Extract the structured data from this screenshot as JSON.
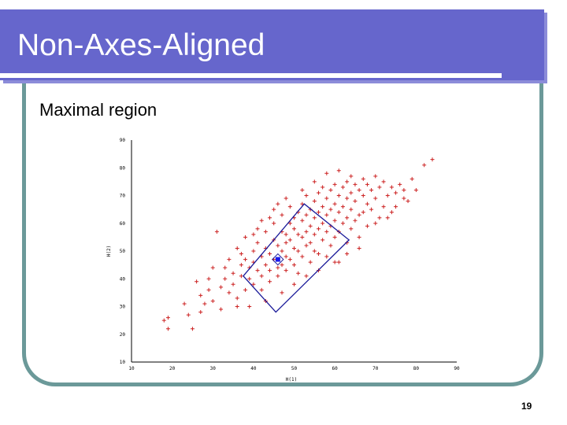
{
  "slide": {
    "title": "Non-Axes-Aligned",
    "subtitle": "Maximal region",
    "page_number": "19"
  },
  "colors": {
    "title_bar": "#6666cc",
    "frame_border": "#6b9999",
    "points": "#cc2222",
    "region": "#1a1a99",
    "focus_point": "#1a1aee"
  },
  "chart_data": {
    "type": "scatter",
    "title": "",
    "xlabel": "H(1)",
    "ylabel": "H(2)",
    "xlim": [
      10,
      90
    ],
    "ylim": [
      10,
      90
    ],
    "xticks": [
      10,
      20,
      30,
      40,
      50,
      60,
      70,
      80,
      90
    ],
    "yticks": [
      10,
      20,
      30,
      40,
      50,
      60,
      70,
      80,
      90
    ],
    "grid": false,
    "marker": "+",
    "series": [
      {
        "values_xy": [
          [
            19,
            26
          ],
          [
            19,
            22
          ],
          [
            23,
            31
          ],
          [
            24,
            27
          ],
          [
            26,
            39
          ],
          [
            27,
            34
          ],
          [
            28,
            31
          ],
          [
            29,
            36
          ],
          [
            30,
            32
          ],
          [
            31,
            57
          ],
          [
            32,
            37
          ],
          [
            33,
            40
          ],
          [
            34,
            35
          ],
          [
            35,
            42
          ],
          [
            35,
            38
          ],
          [
            36,
            33
          ],
          [
            37,
            45
          ],
          [
            37,
            41
          ],
          [
            38,
            47
          ],
          [
            38,
            36
          ],
          [
            39,
            44
          ],
          [
            39,
            40
          ],
          [
            40,
            50
          ],
          [
            40,
            46
          ],
          [
            40,
            38
          ],
          [
            41,
            53
          ],
          [
            41,
            43
          ],
          [
            42,
            48
          ],
          [
            42,
            41
          ],
          [
            42,
            36
          ],
          [
            43,
            57
          ],
          [
            43,
            51
          ],
          [
            43,
            45
          ],
          [
            44,
            49
          ],
          [
            44,
            43
          ],
          [
            44,
            39
          ],
          [
            45,
            60
          ],
          [
            45,
            54
          ],
          [
            45,
            47
          ],
          [
            46,
            52
          ],
          [
            46,
            44
          ],
          [
            46,
            41
          ],
          [
            47,
            63
          ],
          [
            47,
            57
          ],
          [
            47,
            50
          ],
          [
            47,
            45
          ],
          [
            48,
            56
          ],
          [
            48,
            53
          ],
          [
            48,
            48
          ],
          [
            48,
            43
          ],
          [
            49,
            66
          ],
          [
            49,
            60
          ],
          [
            49,
            54
          ],
          [
            49,
            47
          ],
          [
            50,
            62
          ],
          [
            50,
            58
          ],
          [
            50,
            51
          ],
          [
            50,
            45
          ],
          [
            51,
            64
          ],
          [
            51,
            56
          ],
          [
            51,
            50
          ],
          [
            51,
            42
          ],
          [
            52,
            67
          ],
          [
            52,
            61
          ],
          [
            52,
            55
          ],
          [
            52,
            48
          ],
          [
            53,
            70
          ],
          [
            53,
            63
          ],
          [
            53,
            57
          ],
          [
            53,
            52
          ],
          [
            54,
            65
          ],
          [
            54,
            59
          ],
          [
            54,
            53
          ],
          [
            54,
            46
          ],
          [
            55,
            68
          ],
          [
            55,
            62
          ],
          [
            55,
            56
          ],
          [
            55,
            50
          ],
          [
            56,
            71
          ],
          [
            56,
            64
          ],
          [
            56,
            58
          ],
          [
            56,
            49
          ],
          [
            57,
            73
          ],
          [
            57,
            66
          ],
          [
            57,
            60
          ],
          [
            57,
            54
          ],
          [
            58,
            69
          ],
          [
            58,
            63
          ],
          [
            58,
            57
          ],
          [
            58,
            48
          ],
          [
            59,
            72
          ],
          [
            59,
            65
          ],
          [
            59,
            59
          ],
          [
            59,
            52
          ],
          [
            60,
            74
          ],
          [
            60,
            67
          ],
          [
            60,
            61
          ],
          [
            60,
            55
          ],
          [
            61,
            70
          ],
          [
            61,
            64
          ],
          [
            61,
            57
          ],
          [
            61,
            46
          ],
          [
            62,
            73
          ],
          [
            62,
            66
          ],
          [
            62,
            60
          ],
          [
            63,
            75
          ],
          [
            63,
            69
          ],
          [
            63,
            62
          ],
          [
            63,
            53
          ],
          [
            64,
            71
          ],
          [
            64,
            65
          ],
          [
            64,
            58
          ],
          [
            65,
            74
          ],
          [
            65,
            68
          ],
          [
            65,
            61
          ],
          [
            66,
            72
          ],
          [
            66,
            63
          ],
          [
            66,
            55
          ],
          [
            67,
            76
          ],
          [
            67,
            70
          ],
          [
            67,
            64
          ],
          [
            68,
            74
          ],
          [
            68,
            67
          ],
          [
            68,
            59
          ],
          [
            69,
            72
          ],
          [
            69,
            65
          ],
          [
            70,
            77
          ],
          [
            70,
            69
          ],
          [
            71,
            73
          ],
          [
            71,
            62
          ],
          [
            72,
            75
          ],
          [
            72,
            66
          ],
          [
            73,
            70
          ],
          [
            74,
            73
          ],
          [
            74,
            64
          ],
          [
            75,
            71
          ],
          [
            76,
            74
          ],
          [
            77,
            72
          ],
          [
            78,
            68
          ],
          [
            79,
            76
          ],
          [
            84,
            83
          ],
          [
            82,
            81
          ],
          [
            18,
            25
          ],
          [
            25,
            22
          ],
          [
            30,
            44
          ],
          [
            34,
            47
          ],
          [
            36,
            51
          ],
          [
            38,
            55
          ],
          [
            41,
            58
          ],
          [
            44,
            62
          ],
          [
            46,
            67
          ],
          [
            39,
            30
          ],
          [
            43,
            32
          ],
          [
            47,
            35
          ],
          [
            50,
            38
          ],
          [
            53,
            41
          ],
          [
            56,
            43
          ],
          [
            60,
            46
          ],
          [
            63,
            49
          ],
          [
            66,
            51
          ],
          [
            32,
            29
          ],
          [
            27,
            28
          ],
          [
            29,
            40
          ],
          [
            33,
            44
          ],
          [
            36,
            30
          ],
          [
            37,
            49
          ],
          [
            40,
            56
          ],
          [
            42,
            61
          ],
          [
            45,
            65
          ],
          [
            48,
            69
          ],
          [
            52,
            72
          ],
          [
            55,
            75
          ],
          [
            58,
            78
          ],
          [
            61,
            79
          ],
          [
            64,
            77
          ],
          [
            70,
            60
          ],
          [
            73,
            62
          ],
          [
            75,
            66
          ],
          [
            77,
            69
          ],
          [
            80,
            72
          ]
        ]
      }
    ],
    "region_polygon": [
      [
        37.5,
        41.0
      ],
      [
        52.5,
        67.0
      ],
      [
        63.5,
        54.0
      ],
      [
        45.5,
        28.0
      ]
    ],
    "focus_point": [
      46,
      47
    ]
  }
}
